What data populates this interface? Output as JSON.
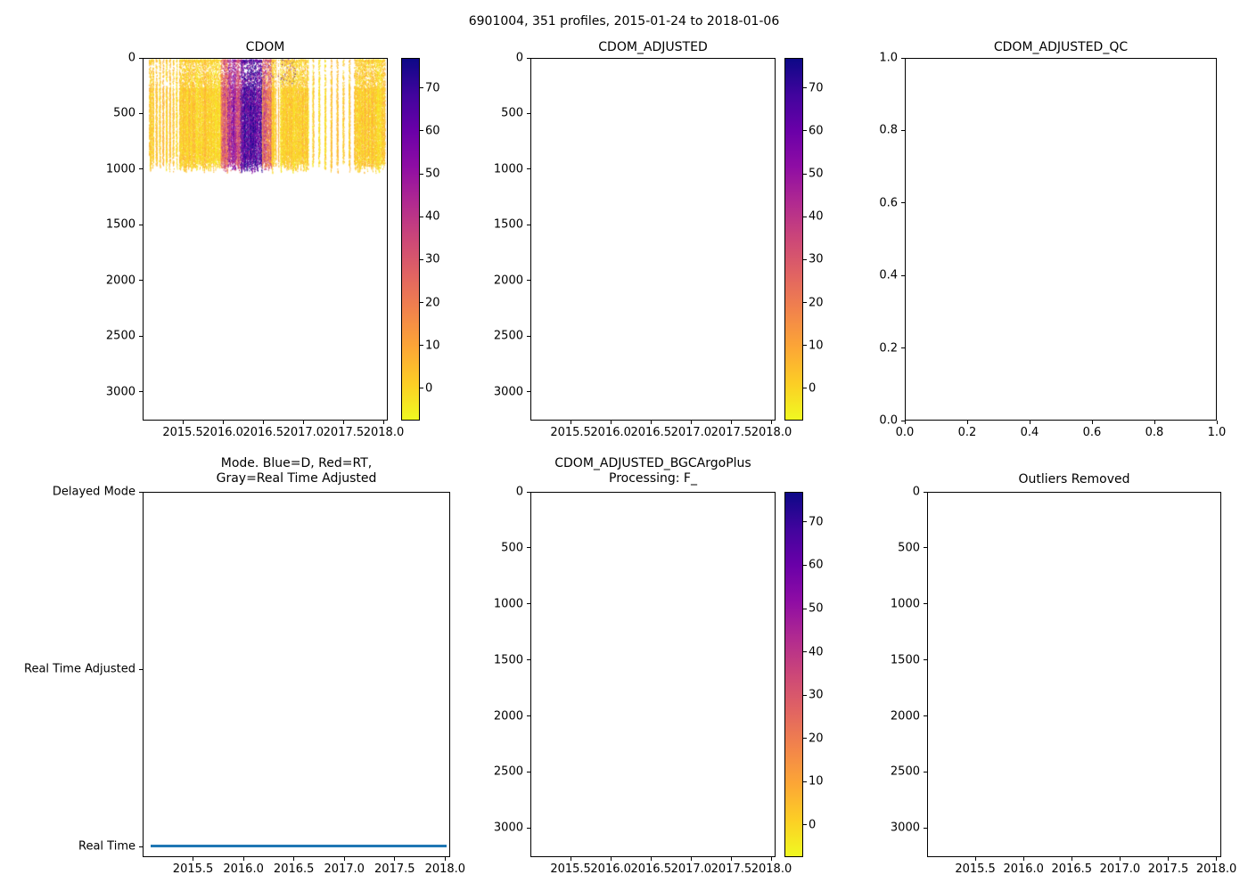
{
  "figure_title": "6901004, 351 profiles, 2015-01-24 to 2018-01-06",
  "colormap": {
    "stops_top_to_bottom": [
      "#0d0887",
      "#41049d",
      "#6a00a8",
      "#8f0da4",
      "#b12a90",
      "#cc4778",
      "#e16462",
      "#f2844b",
      "#fca636",
      "#fcce25",
      "#f0f921"
    ],
    "vmin": -7.5,
    "vmax": 77,
    "tick_values": [
      0,
      10,
      20,
      30,
      40,
      50,
      60,
      70
    ],
    "tick_labels": [
      "0",
      "10",
      "20",
      "30",
      "40",
      "50",
      "60",
      "70"
    ]
  },
  "axis_defaults": {
    "time_xlim": [
      2015.0,
      2018.05
    ],
    "time_tick_values": [
      2015.5,
      2016.0,
      2016.5,
      2017.0,
      2017.5,
      2018.0
    ],
    "time_tick_labels": [
      "2015.5",
      "2016.0",
      "2016.5",
      "2017.0",
      "2017.5",
      "2018.0"
    ],
    "depth_ylim": [
      0,
      3260
    ],
    "depth_tick_values": [
      0,
      500,
      1000,
      1500,
      2000,
      2500,
      3000
    ],
    "depth_tick_labels": [
      "0",
      "500",
      "1000",
      "1500",
      "2000",
      "2500",
      "3000"
    ]
  },
  "chart_data": [
    {
      "type": "scatter",
      "title": "CDOM",
      "x_axis": "time",
      "y_axis": "depth",
      "colorbar": true,
      "scatter_summary": {
        "n_profiles": 351,
        "time_range": [
          2015.07,
          2018.02
        ],
        "depth_range_m": [
          0,
          1030
        ],
        "background_values": [
          -4,
          7
        ],
        "features": [
          {
            "time": [
              2015.97,
              2016.05
            ],
            "values": [
              18,
              42
            ]
          },
          {
            "time": [
              2016.05,
              2016.22
            ],
            "values": [
              30,
              58
            ]
          },
          {
            "time": [
              2016.22,
              2016.48
            ],
            "values": [
              48,
              76
            ]
          },
          {
            "time": [
              2016.48,
              2016.6
            ],
            "values": [
              14,
              42
            ]
          }
        ],
        "surface_dark_speckle": {
          "time": [
            2016.25,
            2016.9
          ],
          "depth_max_m": 230,
          "values": [
            40,
            75
          ],
          "fraction": 0.1
        },
        "sparse_periods": [
          {
            "time": [
              2015.1,
              2015.46
            ],
            "period": 5,
            "keep": 2
          },
          {
            "time": [
              2016.64,
              2016.71
            ],
            "period": 4,
            "keep": 1
          },
          {
            "time": [
              2017.06,
              2017.64
            ],
            "period": 9,
            "keep": 2
          }
        ]
      }
    },
    {
      "type": "empty",
      "title": "CDOM_ADJUSTED",
      "x_axis": "time",
      "y_axis": "depth",
      "colorbar": true
    },
    {
      "type": "empty",
      "title": "CDOM_ADJUSTED_QC",
      "x_axis": "unit",
      "y_axis": "unit",
      "colorbar": false,
      "xlim": [
        0,
        1
      ],
      "ylim": [
        0,
        1
      ],
      "tick_values": [
        0,
        0.2,
        0.4,
        0.6,
        0.8,
        1.0
      ],
      "tick_labels": [
        "0.0",
        "0.2",
        "0.4",
        "0.6",
        "0.8",
        "1.0"
      ]
    },
    {
      "type": "line",
      "title_lines": [
        "Mode. Blue=D, Red=RT,",
        "Gray=Real Time Adjusted"
      ],
      "x_axis": "time",
      "y_axis": "category",
      "categories": [
        "Delayed Mode",
        "Real Time Adjusted",
        "Real Time"
      ],
      "category_values": [
        2,
        1,
        0
      ],
      "ylim": [
        -0.06,
        2.0
      ],
      "line": {
        "at_category": "Real Time",
        "value": 0,
        "color": "#1f77b4",
        "time_range": [
          2015.07,
          2018.02
        ]
      }
    },
    {
      "type": "empty",
      "title_lines": [
        "CDOM_ADJUSTED_BGCArgoPlus",
        "Processing: F_"
      ],
      "x_axis": "time",
      "y_axis": "depth",
      "colorbar": true
    },
    {
      "type": "empty",
      "title": "Outliers Removed",
      "x_axis": "time",
      "y_axis": "depth",
      "colorbar": false
    }
  ]
}
